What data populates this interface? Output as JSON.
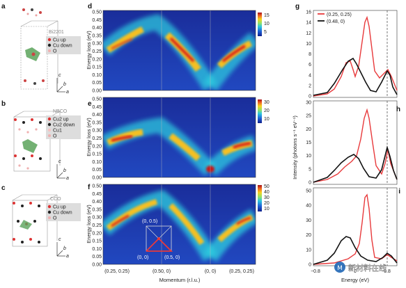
{
  "panels": {
    "a": {
      "label": "a",
      "material": "Bi2201",
      "legend": [
        "Cu up",
        "Cu down",
        "O"
      ],
      "axes": [
        "c",
        "b",
        "a"
      ]
    },
    "b": {
      "label": "b",
      "material": "NBCO",
      "legend": [
        "Cu2 up",
        "Cu2 down",
        "Cu1",
        "O"
      ],
      "axes": [
        "c",
        "b",
        "a"
      ]
    },
    "c": {
      "label": "c",
      "material": "CCO",
      "legend": [
        "Cu up",
        "Cu down",
        "O"
      ],
      "axes": [
        "c",
        "b",
        "a"
      ]
    },
    "d": {
      "label": "d",
      "ylabel": "Energy loss (eV)",
      "yticks": [
        "0.50",
        "0.45",
        "0.40",
        "0.35",
        "0.30",
        "0.25",
        "0.20",
        "0.15",
        "0.10",
        "0.05",
        "0.00"
      ],
      "cbar": [
        "15",
        "10",
        "5"
      ]
    },
    "e": {
      "label": "e",
      "ylabel": "Energy loss (eV)",
      "yticks": [
        "0.50",
        "0.45",
        "0.40",
        "0.35",
        "0.30",
        "0.25",
        "0.20",
        "0.15",
        "0.10",
        "0.05",
        "0.00"
      ],
      "cbar": [
        "30",
        "20",
        "10"
      ]
    },
    "f": {
      "label": "f",
      "ylabel": "Energy loss (eV)",
      "yticks": [
        "0.50",
        "0.45",
        "0.40",
        "0.35",
        "0.30",
        "0.25",
        "0.20",
        "0.15",
        "0.10",
        "0.05",
        "0.00"
      ],
      "cbar": [
        "50",
        "40",
        "30",
        "20",
        "10"
      ],
      "inset": {
        "top": "(0, 0.5)",
        "bl": "(0, 0)",
        "br": "(0.5, 0)"
      }
    },
    "xticks": [
      "(0.25, 0.25)",
      "(0.50, 0)",
      "(0, 0)",
      "(0.25, 0.25)"
    ],
    "xlabel": "Momentum (r.l.u.)",
    "g": {
      "label": "g",
      "yticks": [
        "16",
        "14",
        "12",
        "10",
        "8",
        "6",
        "4",
        "2",
        "0"
      ],
      "legend": [
        {
          "name": "(0.25, 0.25)",
          "color": "#e8393b"
        },
        {
          "name": "(0.48, 0)",
          "color": "#111111"
        }
      ]
    },
    "h": {
      "label": "h",
      "yticks": [
        "30",
        "25",
        "20",
        "15",
        "10",
        "5",
        "0"
      ]
    },
    "i": {
      "label": "i",
      "yticks": [
        "50",
        "40",
        "30",
        "20",
        "10",
        "0"
      ],
      "xticks": [
        "−0.8",
        "0",
        "0.8"
      ]
    },
    "ylabel_right": "Intensity (photons s⁻¹ eV⁻¹)",
    "xlabel_right": "Energy (eV)",
    "watermark": "新材料在线"
  }
}
